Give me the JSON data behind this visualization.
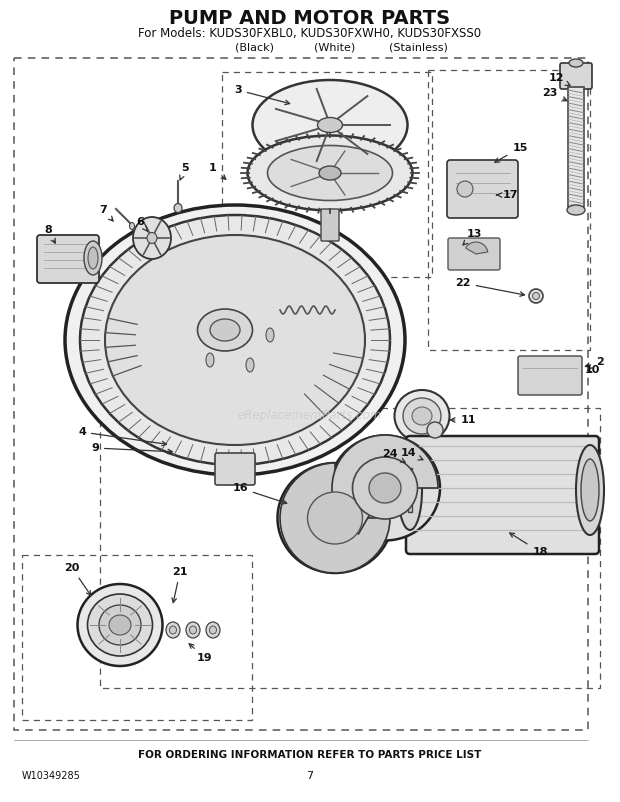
{
  "title": "PUMP AND MOTOR PARTS",
  "subtitle": "For Models: KUDS30FXBL0, KUDS30FXWH0, KUDS30FXSS0",
  "col1": "(Black)",
  "col2": "(White)",
  "col3": "(Stainless)",
  "footer": "FOR ORDERING INFORMATION REFER TO PARTS PRICE LIST",
  "doc_number": "W10349285",
  "page_number": "7",
  "bg_color": "#ffffff",
  "watermark": "eReplacementParts.com",
  "title_fontsize": 14,
  "subtitle_fontsize": 8.5,
  "col_fontsize": 8,
  "footer_fontsize": 7.5
}
